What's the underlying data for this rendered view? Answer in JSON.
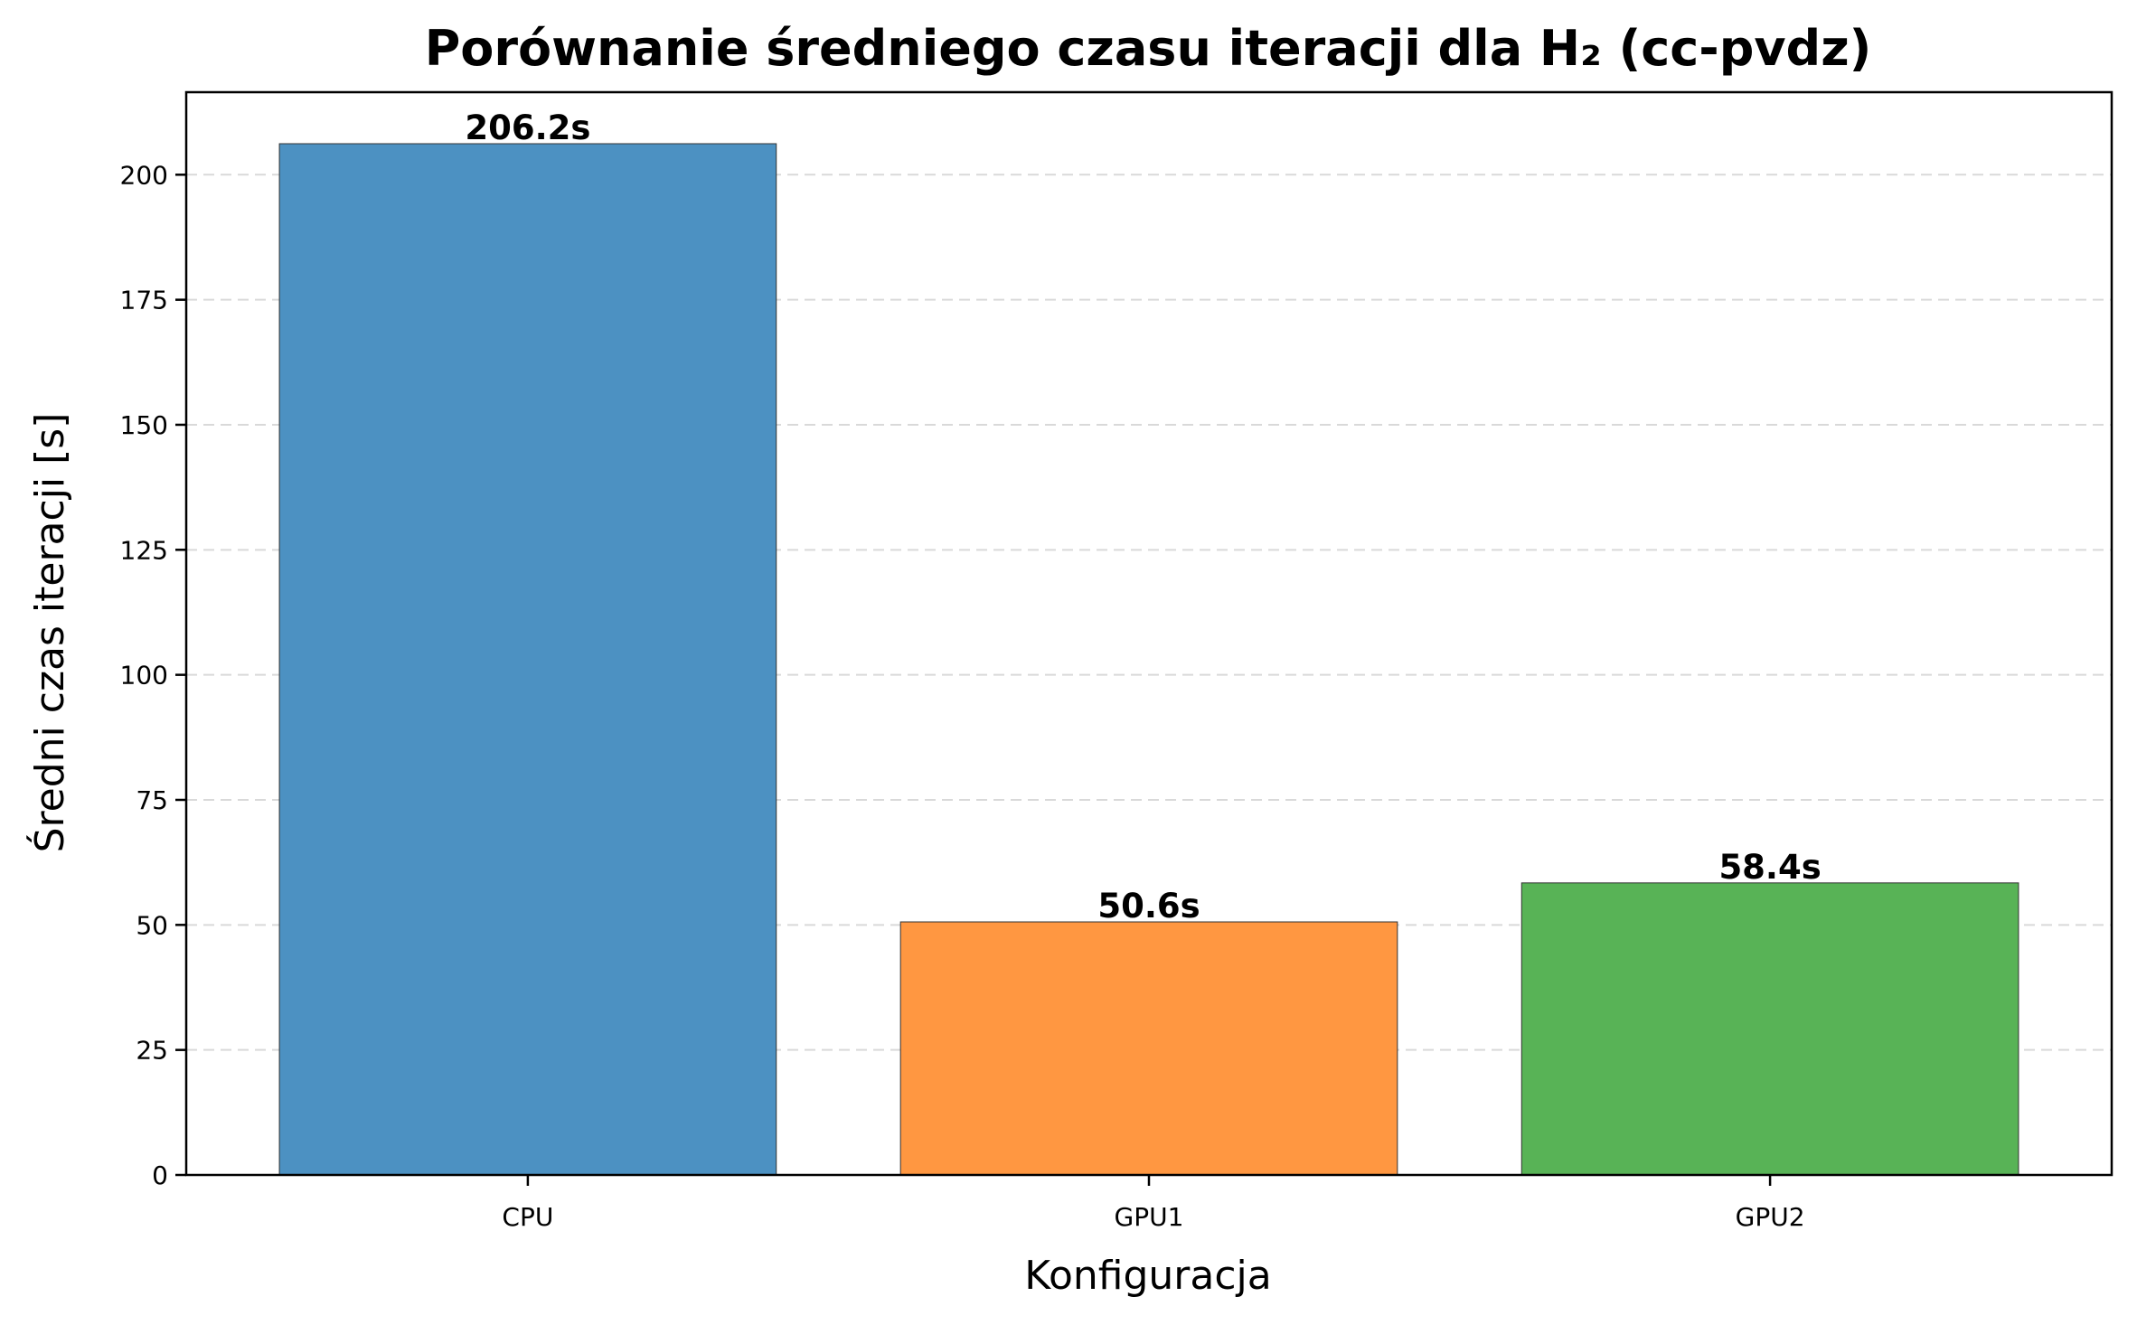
{
  "chart_data": {
    "type": "bar",
    "title": "Porównanie średniego czasu iteracji dla H₂ (cc-pvdz)",
    "xlabel": "Konfiguracja",
    "ylabel": "Średni czas iteracji [s]",
    "categories": [
      "CPU",
      "GPU1",
      "GPU2"
    ],
    "values": [
      206.2,
      50.6,
      58.4
    ],
    "value_labels": [
      "206.2s",
      "50.6s",
      "58.4s"
    ],
    "colors": [
      "#4c91c2",
      "#ff9741",
      "#58b356"
    ],
    "ylim": [
      0,
      216.5
    ],
    "yticks": [
      0,
      25,
      50,
      75,
      100,
      125,
      150,
      175,
      200
    ],
    "grid": "horizontal dashed",
    "legend": "none"
  }
}
